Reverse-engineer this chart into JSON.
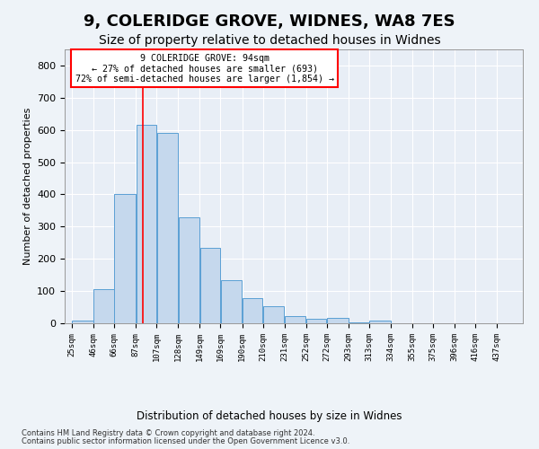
{
  "title1": "9, COLERIDGE GROVE, WIDNES, WA8 7ES",
  "title2": "Size of property relative to detached houses in Widnes",
  "xlabel": "Distribution of detached houses by size in Widnes",
  "ylabel": "Number of detached properties",
  "categories": [
    "25sqm",
    "46sqm",
    "66sqm",
    "87sqm",
    "107sqm",
    "128sqm",
    "149sqm",
    "169sqm",
    "190sqm",
    "210sqm",
    "231sqm",
    "252sqm",
    "272sqm",
    "293sqm",
    "313sqm",
    "334sqm",
    "355sqm",
    "375sqm",
    "396sqm",
    "416sqm",
    "437sqm"
  ],
  "bar_values": [
    7,
    107,
    400,
    615,
    590,
    328,
    235,
    133,
    78,
    52,
    22,
    13,
    17,
    2,
    7,
    0,
    0,
    0,
    0,
    0,
    0
  ],
  "bin_edges": [
    25,
    46,
    66,
    87,
    107,
    128,
    149,
    169,
    190,
    210,
    231,
    252,
    272,
    293,
    313,
    334,
    355,
    375,
    396,
    416,
    437,
    458
  ],
  "bar_fill": "#c5d8ed",
  "bar_edge": "#5a9fd4",
  "annotation_line1": "9 COLERIDGE GROVE: 94sqm",
  "annotation_line2": "← 27% of detached houses are smaller (693)",
  "annotation_line3": "72% of semi-detached houses are larger (1,854) →",
  "vline_x": 94,
  "ylim": [
    0,
    850
  ],
  "yticks": [
    0,
    100,
    200,
    300,
    400,
    500,
    600,
    700,
    800
  ],
  "footnote1": "Contains HM Land Registry data © Crown copyright and database right 2024.",
  "footnote2": "Contains public sector information licensed under the Open Government Licence v3.0.",
  "bg_color": "#eef3f8",
  "plot_bg_color": "#e8eef6",
  "grid_color": "#ffffff",
  "title1_fontsize": 13,
  "title2_fontsize": 10
}
